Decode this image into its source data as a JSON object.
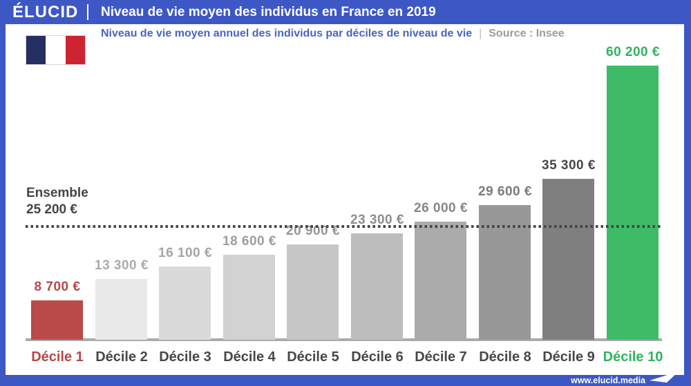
{
  "header": {
    "brand": "ÉLUCID",
    "title": "Niveau de vie moyen des individus en France en 2019"
  },
  "subtitle": {
    "text": "Niveau de vie moyen annuel des individus par déciles de niveau de vie",
    "separator": "|",
    "source": "Source : Insee"
  },
  "flag": {
    "name": "france-flag"
  },
  "reference": {
    "line1": "Ensemble",
    "line2": "25 200 €"
  },
  "footer": {
    "url": "www.elucid.media",
    "logo": "elucid-arrow-icon"
  },
  "colors": {
    "brand_blue": "#3d58c5",
    "accent_red": "#b5484a",
    "accent_green": "#2fb35f",
    "axis_gray": "#ababab",
    "reference_gray": "#454545"
  },
  "chart_data": {
    "type": "bar",
    "title": "Niveau de vie moyen des individus en France en 2019",
    "subtitle": "Niveau de vie moyen annuel des individus par déciles de niveau de vie",
    "source": "Source : Insee",
    "categories": [
      "Décile 1",
      "Décile 2",
      "Décile 3",
      "Décile 4",
      "Décile 5",
      "Décile 6",
      "Décile 7",
      "Décile 8",
      "Décile 9",
      "Décile 10"
    ],
    "values": [
      8700,
      13300,
      16100,
      18600,
      20900,
      23300,
      26000,
      29600,
      35300,
      60200
    ],
    "value_labels": [
      "8 700 €",
      "13 300 €",
      "16 100 €",
      "18 600 €",
      "20 900 €",
      "23 300 €",
      "26 000 €",
      "29 600 €",
      "35 300 €",
      "60 200 €"
    ],
    "bar_colors": [
      "#b94b49",
      "#e9e9e9",
      "#dadada",
      "#d2d2d2",
      "#c6c6c6",
      "#bdbdbd",
      "#ababab",
      "#989898",
      "#7f7f7f",
      "#3dbb67"
    ],
    "value_label_colors": [
      "#b5484a",
      "#ababab",
      "#a5a5a5",
      "#9d9d9d",
      "#959595",
      "#8e8e8e",
      "#868686",
      "#7b7b7b",
      "#474747",
      "#2fb35f"
    ],
    "value_label_bold": [
      true,
      false,
      false,
      false,
      false,
      false,
      false,
      false,
      true,
      true
    ],
    "category_label_colors": [
      "#b5484a",
      "#474747",
      "#474747",
      "#474747",
      "#474747",
      "#474747",
      "#474747",
      "#474747",
      "#474747",
      "#2fb35f"
    ],
    "category_label_bold": [
      true,
      false,
      false,
      false,
      false,
      false,
      false,
      false,
      false,
      true
    ],
    "reference_line": {
      "label": "Ensemble",
      "value": 25200,
      "value_label": "25 200 €",
      "style": "dotted"
    },
    "ylim": [
      0,
      62000
    ],
    "grid": false,
    "legend": false
  }
}
